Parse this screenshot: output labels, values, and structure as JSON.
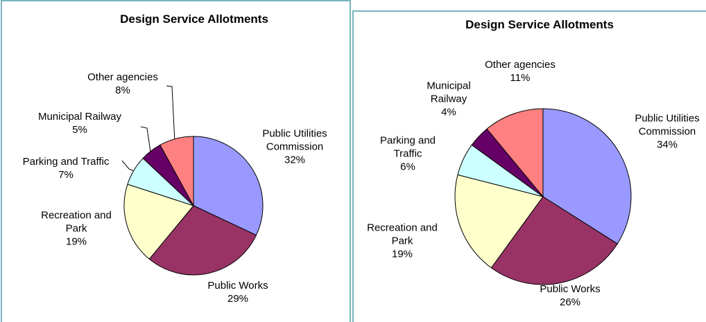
{
  "chart_data": [
    {
      "type": "pie",
      "title": "Design Service Allotments",
      "categories": [
        "Public Utilities Commission",
        "Public Works",
        "Recreation and Park",
        "Parking and Traffic",
        "Municipal Railway",
        "Other agencies"
      ],
      "values": [
        32,
        29,
        19,
        7,
        5,
        8
      ],
      "value_labels": [
        "32%",
        "29%",
        "19%",
        "7%",
        "5%",
        "8%"
      ],
      "colors": [
        "#9999ff",
        "#993366",
        "#ffffcc",
        "#ccffff",
        "#660066",
        "#ff8080"
      ]
    },
    {
      "type": "pie",
      "title": "Design Service Allotments",
      "categories": [
        "Public Utilities Commission",
        "Public Works",
        "Recreation and Park",
        "Parking and Traffic",
        "Municipal Railway",
        "Other agencies"
      ],
      "values": [
        34,
        26,
        19,
        6,
        4,
        11
      ],
      "value_labels": [
        "34%",
        "26%",
        "19%",
        "6%",
        "4%",
        "11%"
      ],
      "colors": [
        "#9999ff",
        "#993366",
        "#ffffcc",
        "#ccffff",
        "#660066",
        "#ff8080"
      ]
    }
  ]
}
